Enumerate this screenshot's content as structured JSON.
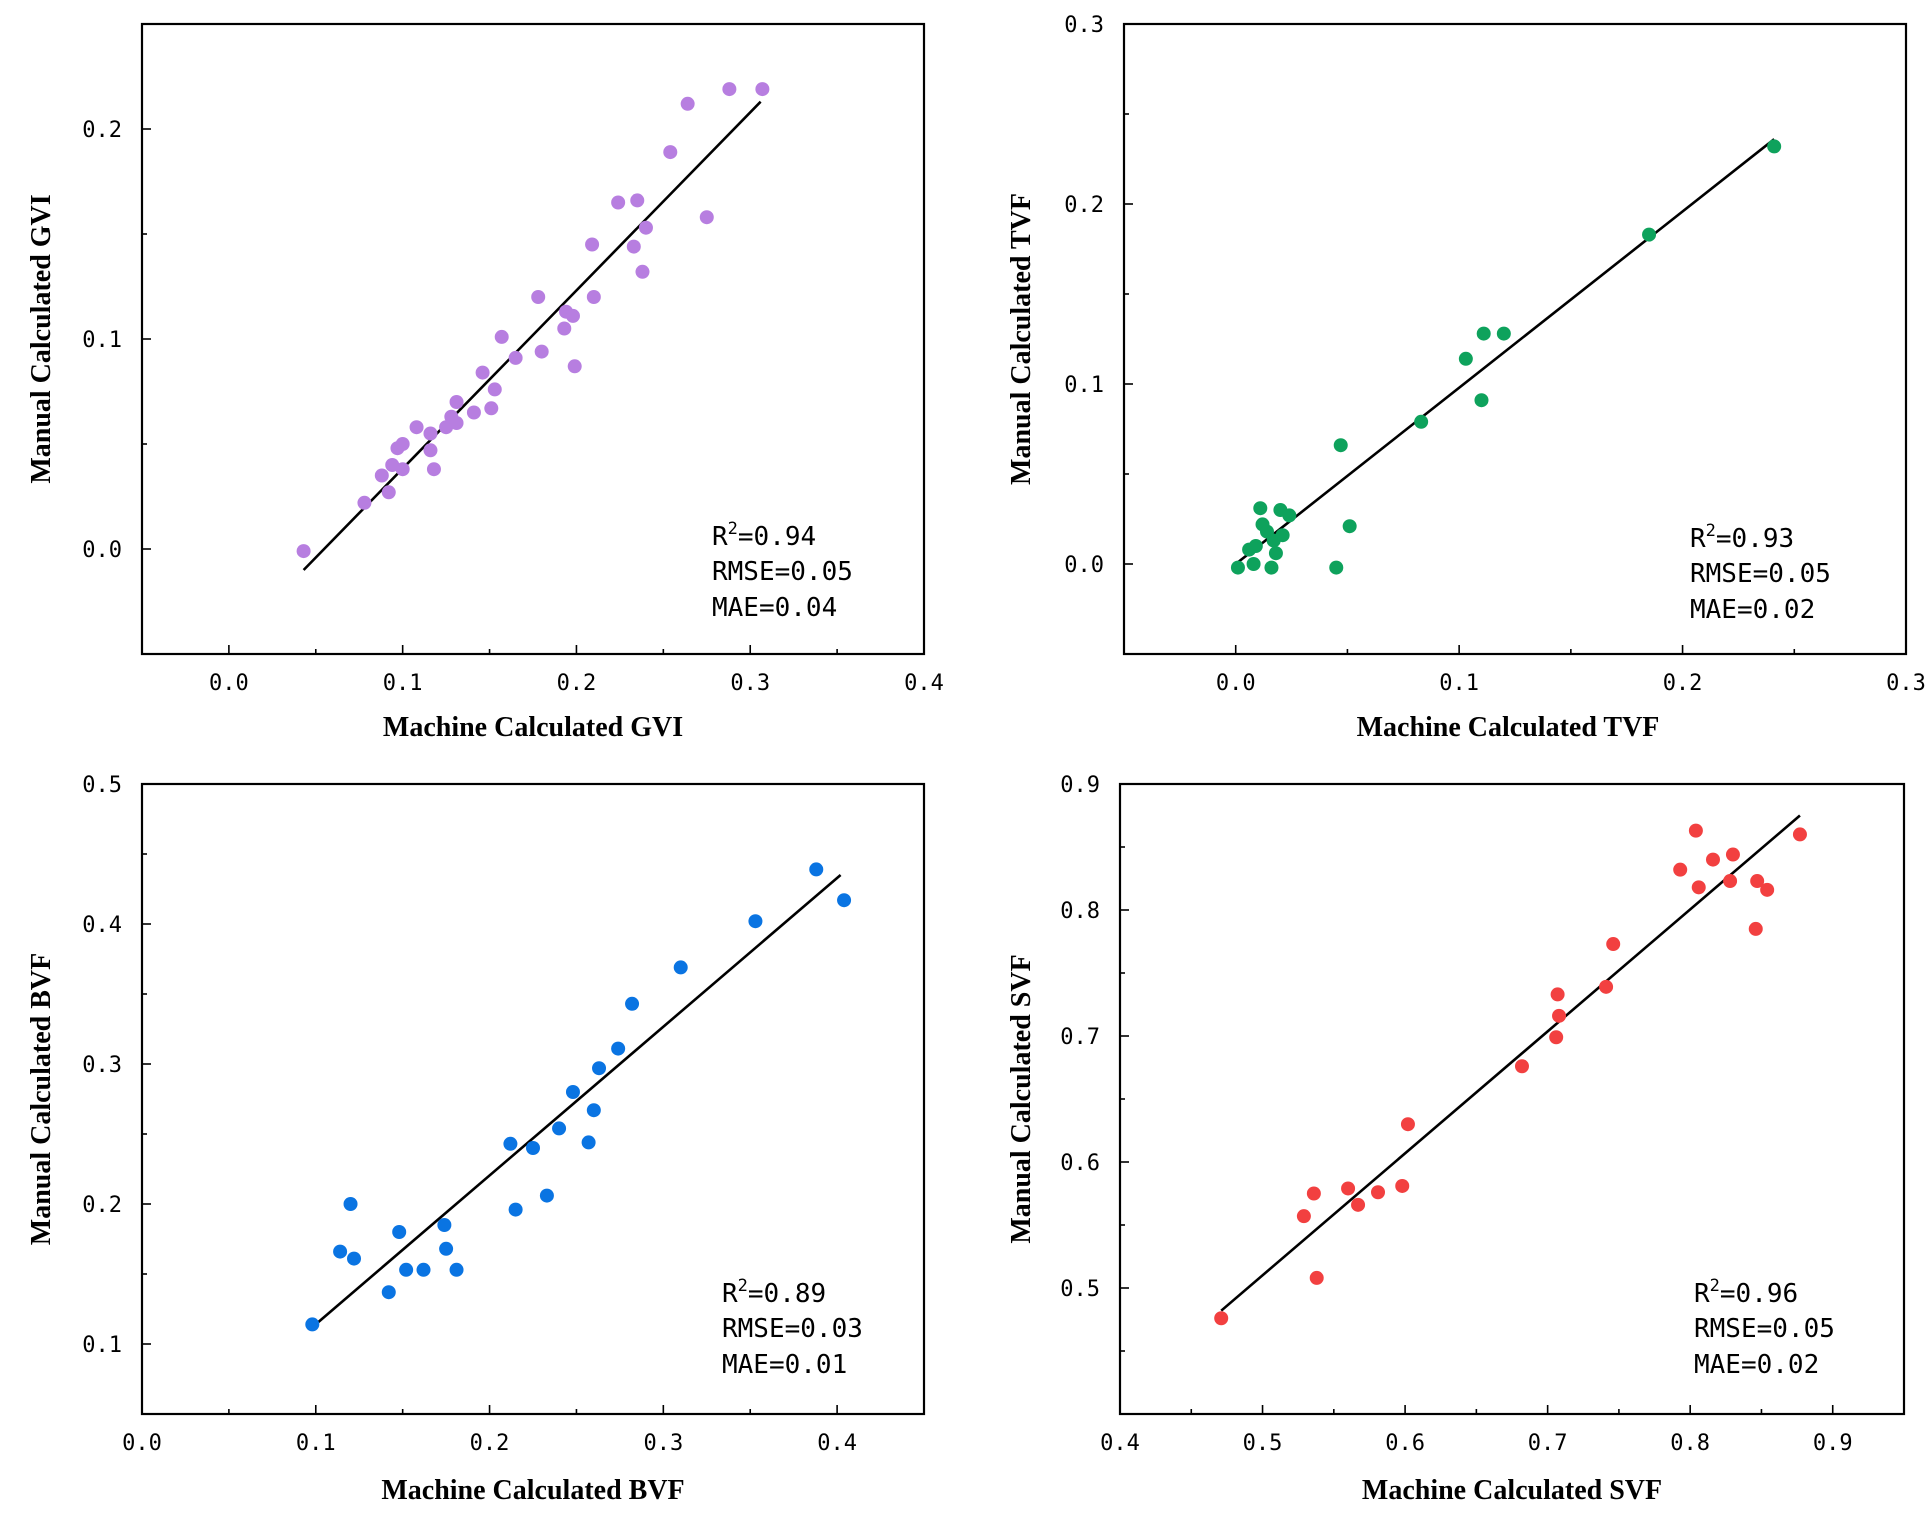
{
  "chart_data": [
    {
      "type": "scatter",
      "xlabel": "Machine Calculated GVI",
      "ylabel": "Manual Calculated GVI",
      "xlim": [
        -0.05,
        0.4
      ],
      "ylim": [
        -0.05,
        0.25
      ],
      "xticks": [
        0.0,
        0.1,
        0.2,
        0.3,
        0.4
      ],
      "xtick_labels": [
        "0.0",
        "0.1",
        "0.2",
        "0.3",
        "0.4"
      ],
      "yticks": [
        0.0,
        0.1,
        0.2
      ],
      "ytick_labels": [
        "0.0",
        "0.1",
        "0.2"
      ],
      "color": "#b77ee0",
      "fit_line": [
        [
          0.043,
          -0.01
        ],
        [
          0.306,
          0.213
        ]
      ],
      "stats": {
        "r2_label": "R",
        "r2_sup": "2",
        "r2_value": "=0.94",
        "rmse": "RMSE=0.05",
        "mae": "MAE=0.04"
      },
      "points": [
        [
          0.043,
          -0.001
        ],
        [
          0.078,
          0.022
        ],
        [
          0.088,
          0.035
        ],
        [
          0.092,
          0.027
        ],
        [
          0.094,
          0.04
        ],
        [
          0.097,
          0.048
        ],
        [
          0.1,
          0.05
        ],
        [
          0.1,
          0.038
        ],
        [
          0.108,
          0.058
        ],
        [
          0.116,
          0.047
        ],
        [
          0.116,
          0.055
        ],
        [
          0.118,
          0.038
        ],
        [
          0.125,
          0.058
        ],
        [
          0.128,
          0.063
        ],
        [
          0.131,
          0.06
        ],
        [
          0.131,
          0.07
        ],
        [
          0.141,
          0.065
        ],
        [
          0.146,
          0.084
        ],
        [
          0.151,
          0.067
        ],
        [
          0.153,
          0.076
        ],
        [
          0.157,
          0.101
        ],
        [
          0.165,
          0.091
        ],
        [
          0.178,
          0.12
        ],
        [
          0.18,
          0.094
        ],
        [
          0.193,
          0.105
        ],
        [
          0.194,
          0.113
        ],
        [
          0.198,
          0.111
        ],
        [
          0.199,
          0.087
        ],
        [
          0.209,
          0.145
        ],
        [
          0.21,
          0.12
        ],
        [
          0.224,
          0.165
        ],
        [
          0.233,
          0.144
        ],
        [
          0.235,
          0.166
        ],
        [
          0.238,
          0.132
        ],
        [
          0.24,
          0.153
        ],
        [
          0.254,
          0.189
        ],
        [
          0.264,
          0.212
        ],
        [
          0.275,
          0.158
        ],
        [
          0.288,
          0.219
        ],
        [
          0.307,
          0.219
        ]
      ]
    },
    {
      "type": "scatter",
      "xlabel": "Machine Calculated TVF",
      "ylabel": "Manual Calculated TVF",
      "xlim": [
        -0.05,
        0.3
      ],
      "ylim": [
        -0.05,
        0.3
      ],
      "xticks": [
        0.0,
        0.1,
        0.2,
        0.3
      ],
      "xtick_labels": [
        "0.0",
        "0.1",
        "0.2",
        "0.3"
      ],
      "yticks": [
        0.0,
        0.1,
        0.2,
        0.3
      ],
      "ytick_labels": [
        "0.0",
        "0.1",
        "0.2",
        "0.3"
      ],
      "color": "#0ea25c",
      "fit_line": [
        [
          0.0,
          0.0
        ],
        [
          0.241,
          0.236
        ]
      ],
      "stats": {
        "r2_label": "R",
        "r2_sup": "2",
        "r2_value": "=0.93",
        "rmse": "RMSE=0.05",
        "mae": "MAE=0.02"
      },
      "points": [
        [
          0.001,
          -0.002
        ],
        [
          0.006,
          0.008
        ],
        [
          0.008,
          0.0
        ],
        [
          0.009,
          0.01
        ],
        [
          0.011,
          0.031
        ],
        [
          0.012,
          0.022
        ],
        [
          0.014,
          0.018
        ],
        [
          0.016,
          -0.002
        ],
        [
          0.017,
          0.013
        ],
        [
          0.018,
          0.006
        ],
        [
          0.02,
          0.03
        ],
        [
          0.021,
          0.016
        ],
        [
          0.024,
          0.027
        ],
        [
          0.045,
          -0.002
        ],
        [
          0.047,
          0.066
        ],
        [
          0.051,
          0.021
        ],
        [
          0.083,
          0.079
        ],
        [
          0.103,
          0.114
        ],
        [
          0.11,
          0.091
        ],
        [
          0.111,
          0.128
        ],
        [
          0.12,
          0.128
        ],
        [
          0.185,
          0.183
        ],
        [
          0.241,
          0.232
        ]
      ]
    },
    {
      "type": "scatter",
      "xlabel": "Machine Calculated BVF",
      "ylabel": "Manual Calculated BVF",
      "xlim": [
        0.0,
        0.45
      ],
      "ylim": [
        0.05,
        0.5
      ],
      "xticks": [
        0.0,
        0.1,
        0.2,
        0.3,
        0.4
      ],
      "xtick_labels": [
        "0.0",
        "0.1",
        "0.2",
        "0.3",
        "0.4"
      ],
      "yticks": [
        0.1,
        0.2,
        0.3,
        0.4,
        0.5
      ],
      "ytick_labels": [
        "0.1",
        "0.2",
        "0.3",
        "0.4",
        "0.5"
      ],
      "color": "#0a74e2",
      "fit_line": [
        [
          0.098,
          0.112
        ],
        [
          0.402,
          0.435
        ]
      ],
      "stats": {
        "r2_label": "R",
        "r2_sup": "2",
        "r2_value": "=0.89",
        "rmse": "RMSE=0.03",
        "mae": "MAE=0.01"
      },
      "points": [
        [
          0.098,
          0.114
        ],
        [
          0.114,
          0.166
        ],
        [
          0.12,
          0.2
        ],
        [
          0.122,
          0.161
        ],
        [
          0.142,
          0.137
        ],
        [
          0.148,
          0.18
        ],
        [
          0.152,
          0.153
        ],
        [
          0.162,
          0.153
        ],
        [
          0.174,
          0.185
        ],
        [
          0.175,
          0.168
        ],
        [
          0.181,
          0.153
        ],
        [
          0.212,
          0.243
        ],
        [
          0.215,
          0.196
        ],
        [
          0.225,
          0.24
        ],
        [
          0.233,
          0.206
        ],
        [
          0.24,
          0.254
        ],
        [
          0.248,
          0.28
        ],
        [
          0.257,
          0.244
        ],
        [
          0.26,
          0.267
        ],
        [
          0.263,
          0.297
        ],
        [
          0.274,
          0.311
        ],
        [
          0.282,
          0.343
        ],
        [
          0.31,
          0.369
        ],
        [
          0.353,
          0.402
        ],
        [
          0.388,
          0.439
        ],
        [
          0.404,
          0.417
        ]
      ]
    },
    {
      "type": "scatter",
      "xlabel": "Machine Calculated SVF",
      "ylabel": "Manual Calculated SVF",
      "xlim": [
        0.4,
        0.95
      ],
      "ylim": [
        0.4,
        0.9
      ],
      "xticks": [
        0.4,
        0.5,
        0.6,
        0.7,
        0.8,
        0.9
      ],
      "xtick_labels": [
        "0.4",
        "0.5",
        "0.6",
        "0.7",
        "0.8",
        "0.9"
      ],
      "yticks": [
        0.5,
        0.6,
        0.7,
        0.8,
        0.9
      ],
      "ytick_labels": [
        "0.5",
        "0.6",
        "0.7",
        "0.8",
        "0.9"
      ],
      "color": "#f24040",
      "fit_line": [
        [
          0.471,
          0.482
        ],
        [
          0.877,
          0.875
        ]
      ],
      "stats": {
        "r2_label": "R",
        "r2_sup": "2",
        "r2_value": "=0.96",
        "rmse": "RMSE=0.05",
        "mae": "MAE=0.02"
      },
      "points": [
        [
          0.471,
          0.476
        ],
        [
          0.529,
          0.557
        ],
        [
          0.536,
          0.575
        ],
        [
          0.538,
          0.508
        ],
        [
          0.56,
          0.579
        ],
        [
          0.567,
          0.566
        ],
        [
          0.581,
          0.576
        ],
        [
          0.598,
          0.581
        ],
        [
          0.602,
          0.63
        ],
        [
          0.682,
          0.676
        ],
        [
          0.706,
          0.699
        ],
        [
          0.707,
          0.733
        ],
        [
          0.708,
          0.716
        ],
        [
          0.741,
          0.739
        ],
        [
          0.746,
          0.773
        ],
        [
          0.793,
          0.832
        ],
        [
          0.804,
          0.863
        ],
        [
          0.806,
          0.818
        ],
        [
          0.816,
          0.84
        ],
        [
          0.828,
          0.823
        ],
        [
          0.83,
          0.844
        ],
        [
          0.846,
          0.785
        ],
        [
          0.847,
          0.823
        ],
        [
          0.854,
          0.816
        ],
        [
          0.877,
          0.86
        ]
      ]
    }
  ]
}
